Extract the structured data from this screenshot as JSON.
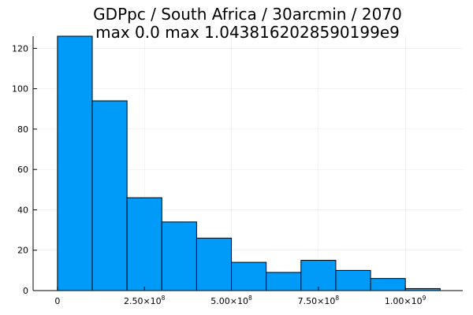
{
  "chart_data": {
    "type": "bar",
    "title_lines": [
      "GDPpc / South Africa / 30arcmin / 2070",
      "max 0.0  max 1.0438162028590199e9"
    ],
    "xlabel": "",
    "ylabel": "",
    "bin_edges": [
      0,
      100000000,
      200000000,
      300000000,
      400000000,
      500000000,
      600000000,
      700000000,
      800000000,
      900000000,
      1000000000,
      1100000000
    ],
    "values": [
      126,
      94,
      46,
      34,
      26,
      14,
      9,
      15,
      10,
      6,
      1
    ],
    "xlim": [
      -70000000,
      1165000000
    ],
    "ylim": [
      0,
      126
    ],
    "x_ticks": [
      {
        "value": 0,
        "mantissa": "0",
        "exponent": ""
      },
      {
        "value": 250000000,
        "mantissa": "2.50×10",
        "exponent": "8"
      },
      {
        "value": 500000000,
        "mantissa": "5.00×10",
        "exponent": "8"
      },
      {
        "value": 750000000,
        "mantissa": "7.50×10",
        "exponent": "8"
      },
      {
        "value": 1000000000,
        "mantissa": "1.00×10",
        "exponent": "9"
      }
    ],
    "y_ticks": [
      {
        "value": 0,
        "label": "0"
      },
      {
        "value": 20,
        "label": "20"
      },
      {
        "value": 40,
        "label": "40"
      },
      {
        "value": 60,
        "label": "60"
      },
      {
        "value": 80,
        "label": "80"
      },
      {
        "value": 100,
        "label": "100"
      },
      {
        "value": 120,
        "label": "120"
      }
    ],
    "grid": true,
    "legend": "none",
    "bar_color": "#009af9"
  }
}
